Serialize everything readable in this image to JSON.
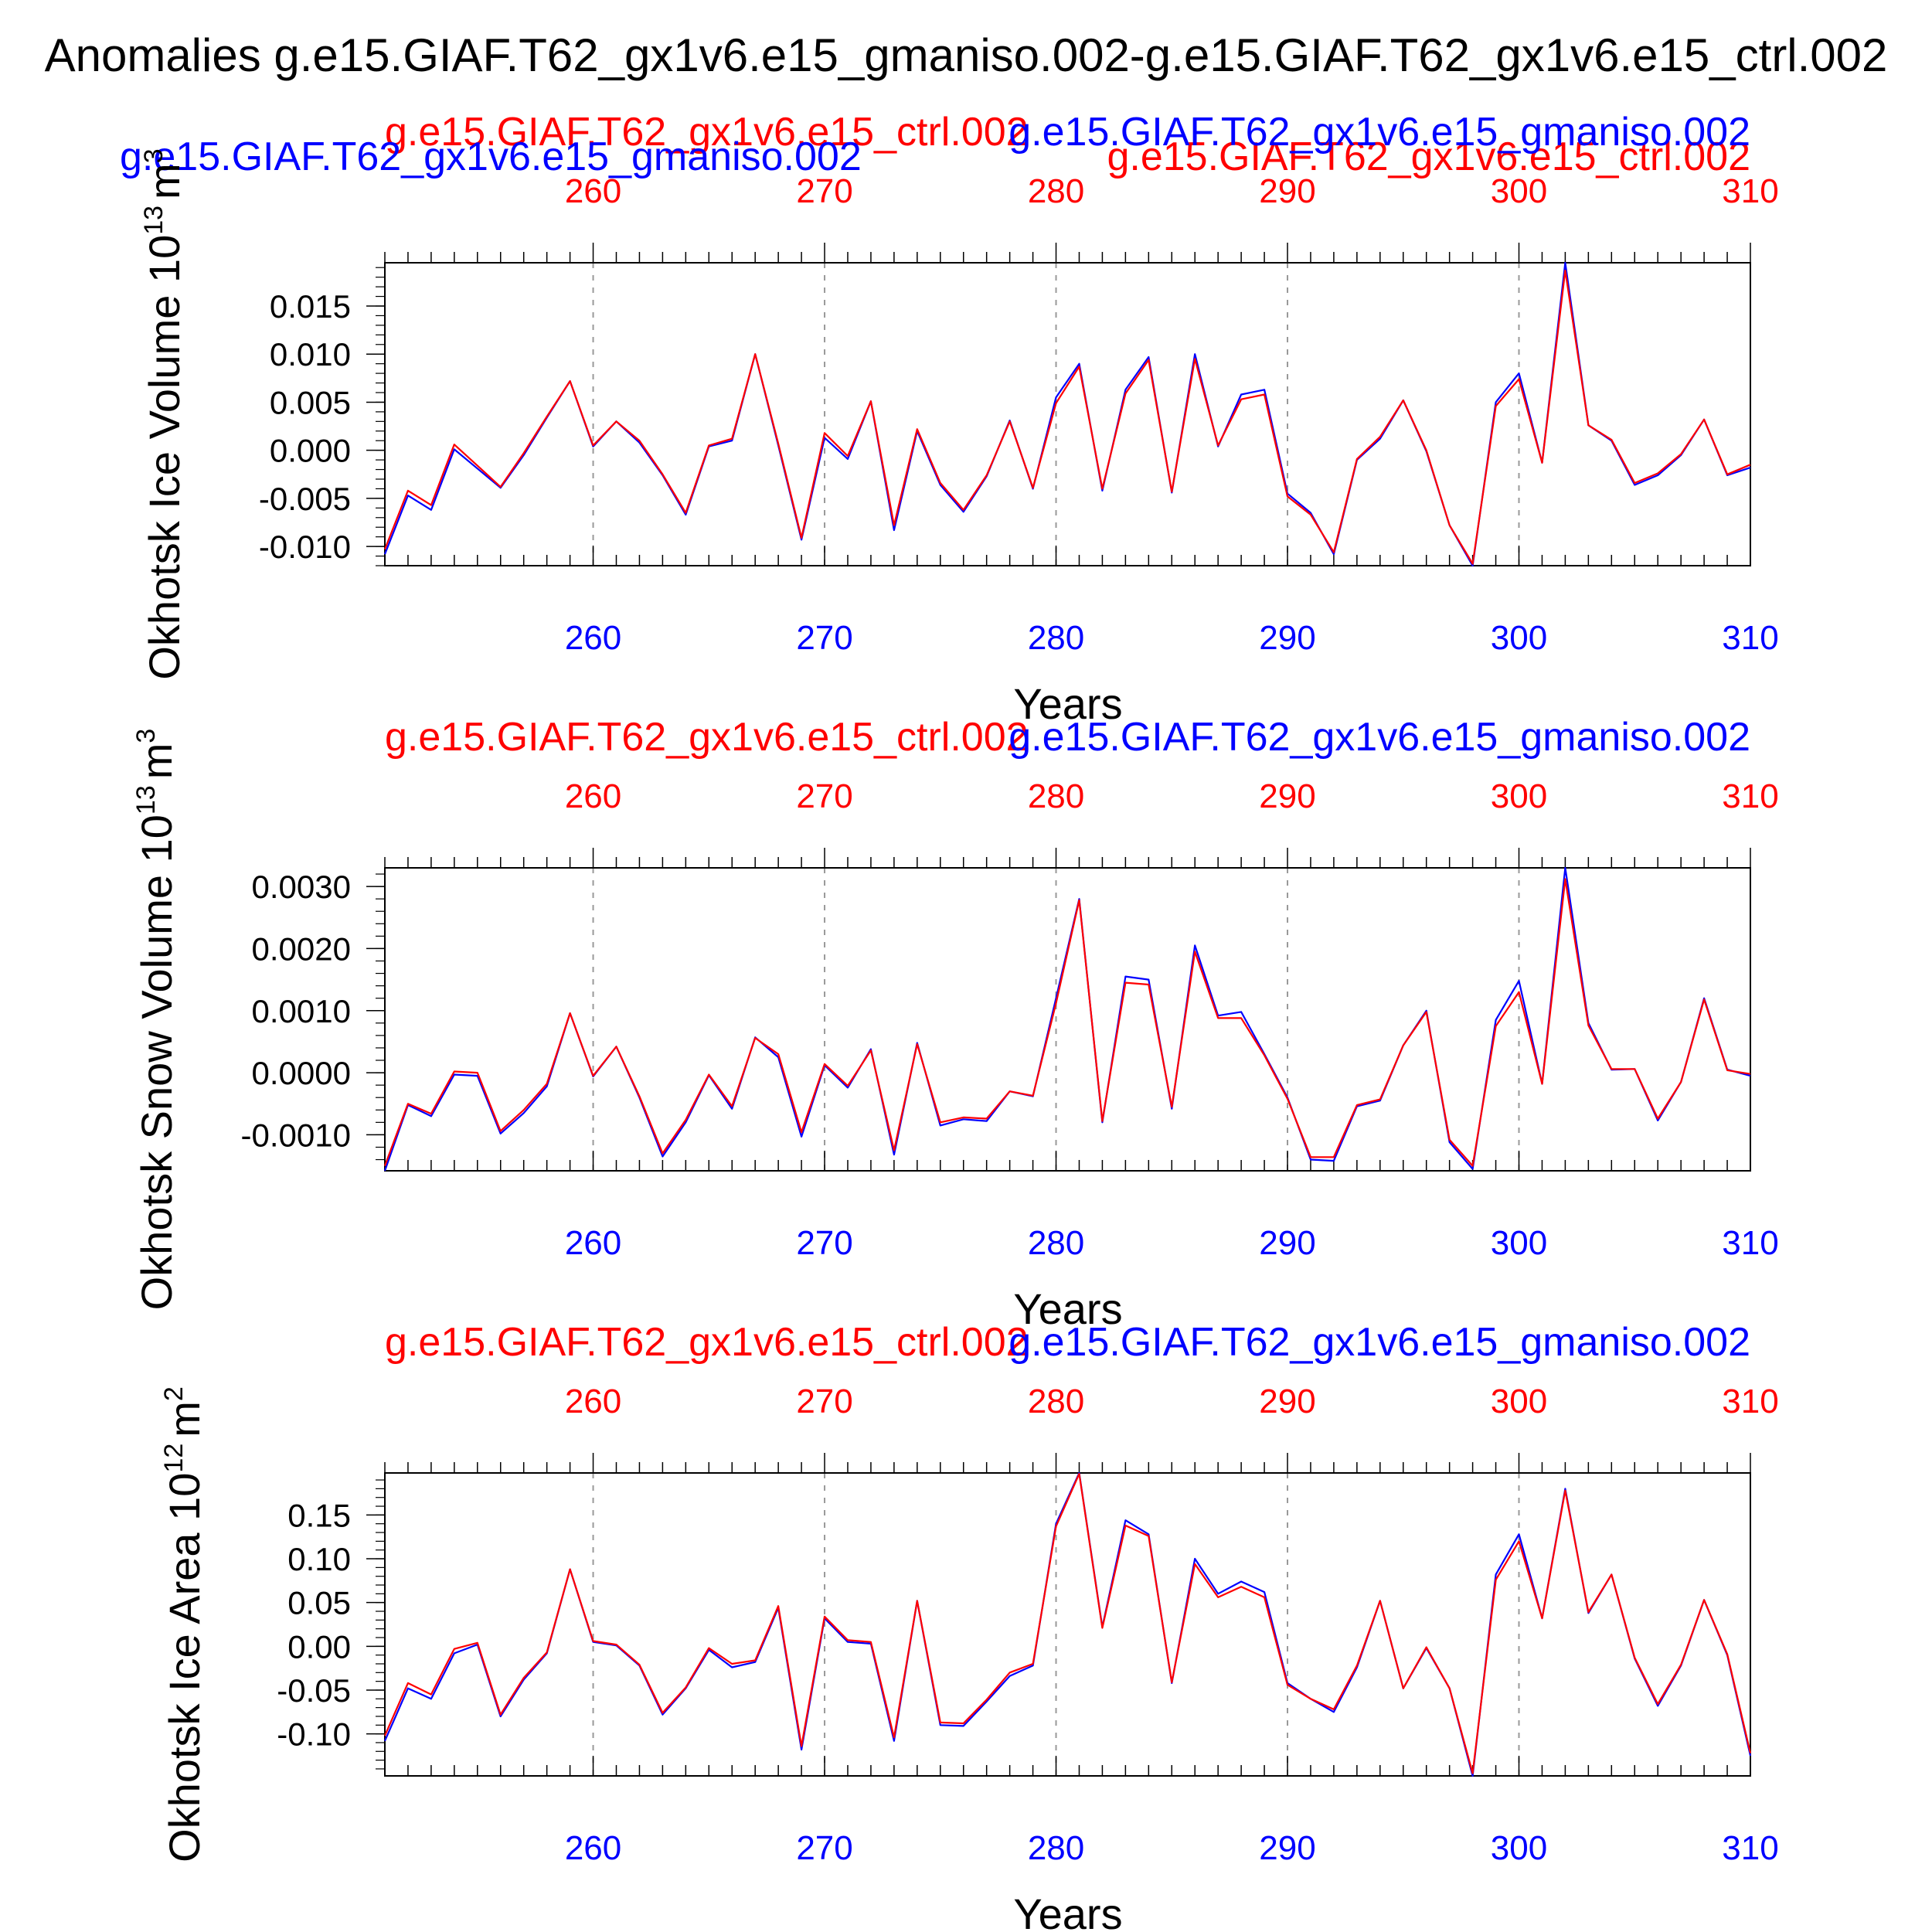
{
  "figure": {
    "main_title": "Anomalies g.e15.GIAF.T62_gx1v6.e15_gmaniso.002-g.e15.GIAF.T62_gx1v6.e15_ctrl.002",
    "colors": {
      "experiment": "#0000ff",
      "control": "#ff0000",
      "axis": "#000000",
      "grid": "#999999"
    },
    "top_labels": {
      "control": "g.e15.GIAF.T62_gx1v6.e15_ctrl.002",
      "experiment": "g.e15.GIAF.T62_gx1v6.e15_gmaniso.002"
    }
  },
  "chart_data": [
    {
      "type": "line",
      "title": "",
      "ylabel": "Okhotsk Ice Volume 10",
      "ylabel_sup": "13",
      "ylabel_unit": "m",
      "ylabel_unit_sup": "3",
      "xlabel": "Years",
      "xlim": [
        251,
        310
      ],
      "ylim": [
        -0.012,
        0.0195
      ],
      "xticks": [
        260,
        270,
        280,
        290,
        300,
        310
      ],
      "yticks": [
        -0.01,
        -0.005,
        0.0,
        0.005,
        0.01,
        0.015
      ],
      "ytick_labels": [
        "-0.010",
        "-0.005",
        "0.000",
        "0.005",
        "0.010",
        "0.015"
      ],
      "grid_x": true,
      "x": [
        251,
        252,
        253,
        254,
        255,
        256,
        257,
        258,
        259,
        260,
        261,
        262,
        263,
        264,
        265,
        266,
        267,
        268,
        269,
        270,
        271,
        272,
        273,
        274,
        275,
        276,
        277,
        278,
        279,
        280,
        281,
        282,
        283,
        284,
        285,
        286,
        287,
        288,
        289,
        290,
        291,
        292,
        293,
        294,
        295,
        296,
        297,
        298,
        299,
        300,
        301,
        302,
        303,
        304,
        305,
        306,
        307,
        308,
        309,
        310
      ],
      "series": [
        {
          "name": "g.e15.GIAF.T62_gx1v6.e15_gmaniso.002",
          "color": "#0000ff",
          "values": [
            -0.0108,
            -0.0047,
            -0.0062,
            0.0001,
            -0.0019,
            -0.0039,
            -0.0005,
            0.0034,
            0.0072,
            0.0004,
            0.003,
            0.0008,
            -0.0026,
            -0.0067,
            0.0004,
            0.001,
            0.01,
            0.0005,
            -0.0093,
            0.0013,
            -0.0009,
            0.0051,
            -0.0083,
            0.002,
            -0.0036,
            -0.0064,
            -0.0027,
            0.0031,
            -0.004,
            0.0055,
            0.009,
            -0.0042,
            0.0063,
            0.0097,
            -0.0044,
            0.01,
            0.0004,
            0.0058,
            0.0063,
            -0.0045,
            -0.0065,
            -0.0108,
            -0.001,
            0.0012,
            0.0052,
            -0.0001,
            -0.0078,
            -0.012,
            0.005,
            0.008,
            -0.0013,
            0.0195,
            0.0026,
            0.001,
            -0.0036,
            -0.0026,
            -0.0005,
            0.0032,
            -0.0026,
            -0.0018
          ]
        },
        {
          "name": "g.e15.GIAF.T62_gx1v6.e15_ctrl.002",
          "color": "#ff0000",
          "values": [
            -0.0103,
            -0.0042,
            -0.0057,
            0.0006,
            -0.0016,
            -0.0038,
            -0.0003,
            0.0035,
            0.0072,
            0.0005,
            0.003,
            0.001,
            -0.0025,
            -0.0065,
            0.0005,
            0.0012,
            0.01,
            0.0007,
            -0.0091,
            0.0018,
            -0.0006,
            0.0051,
            -0.0078,
            0.0022,
            -0.0034,
            -0.0062,
            -0.0026,
            0.003,
            -0.0039,
            0.0049,
            0.0087,
            -0.004,
            0.0059,
            0.0094,
            -0.0043,
            0.0095,
            0.0005,
            0.0053,
            0.0058,
            -0.0048,
            -0.0067,
            -0.0106,
            -0.0009,
            0.0014,
            0.0052,
            0.0,
            -0.0078,
            -0.0118,
            0.0046,
            0.0074,
            -0.0013,
            0.0187,
            0.0026,
            0.0011,
            -0.0034,
            -0.0024,
            -0.0004,
            0.0032,
            -0.0025,
            -0.0015
          ]
        }
      ]
    },
    {
      "type": "line",
      "title": "",
      "ylabel": "Okhotsk Snow Volume 10",
      "ylabel_sup": "13",
      "ylabel_unit": "m",
      "ylabel_unit_sup": "3",
      "xlabel": "Years",
      "xlim": [
        251,
        310
      ],
      "ylim": [
        -0.00158,
        0.0033
      ],
      "xticks": [
        260,
        270,
        280,
        290,
        300,
        310
      ],
      "yticks": [
        -0.001,
        0.0,
        0.001,
        0.002,
        0.003
      ],
      "ytick_labels": [
        "-0.0010",
        "0.0000",
        "0.0010",
        "0.0020",
        "0.0030"
      ],
      "grid_x": true,
      "x": [
        251,
        252,
        253,
        254,
        255,
        256,
        257,
        258,
        259,
        260,
        261,
        262,
        263,
        264,
        265,
        266,
        267,
        268,
        269,
        270,
        271,
        272,
        273,
        274,
        275,
        276,
        277,
        278,
        279,
        280,
        281,
        282,
        283,
        284,
        285,
        286,
        287,
        288,
        289,
        290,
        291,
        292,
        293,
        294,
        295,
        296,
        297,
        298,
        299,
        300,
        301,
        302,
        303,
        304,
        305,
        306,
        307,
        308,
        309,
        310
      ],
      "series": [
        {
          "name": "g.e15.GIAF.T62_gx1v6.e15_gmaniso.002",
          "color": "#0000ff",
          "values": [
            -0.00158,
            -0.00052,
            -0.0007,
            -3e-05,
            -5e-05,
            -0.00098,
            -0.00065,
            -0.00022,
            0.00096,
            -6e-05,
            0.00042,
            -0.0004,
            -0.00135,
            -0.0008,
            -4e-05,
            -0.00058,
            0.00057,
            0.00025,
            -0.00103,
            0.00012,
            -0.00024,
            0.00038,
            -0.00132,
            0.00048,
            -0.00085,
            -0.00075,
            -0.00078,
            -0.0003,
            -0.00038,
            0.0012,
            0.0028,
            -0.0008,
            0.00155,
            0.0015,
            -0.00058,
            0.00205,
            0.00092,
            0.00098,
            0.0003,
            -0.0004,
            -0.0014,
            -0.00142,
            -0.00054,
            -0.00045,
            0.00044,
            0.001,
            -0.00112,
            -0.00155,
            0.00085,
            0.00148,
            -0.00018,
            0.0033,
            0.0008,
            5e-05,
            6e-05,
            -0.00077,
            -0.00015,
            0.0012,
            5e-05,
            -5e-05
          ]
        },
        {
          "name": "g.e15.GIAF.T62_gx1v6.e15_ctrl.002",
          "color": "#ff0000",
          "values": [
            -0.0015,
            -0.0005,
            -0.00066,
            2e-05,
            0.0,
            -0.00094,
            -0.0006,
            -0.00018,
            0.00096,
            -5e-05,
            0.00042,
            -0.00038,
            -0.0013,
            -0.00076,
            -3e-05,
            -0.00054,
            0.00056,
            0.0003,
            -0.00096,
            0.00014,
            -0.00021,
            0.00036,
            -0.00125,
            0.00046,
            -0.0008,
            -0.00072,
            -0.00074,
            -0.0003,
            -0.00037,
            0.00112,
            0.00278,
            -0.00078,
            0.00145,
            0.00142,
            -0.00055,
            0.00195,
            0.00088,
            0.00088,
            0.00028,
            -0.00042,
            -0.00136,
            -0.00136,
            -0.00052,
            -0.00043,
            0.00044,
            0.00098,
            -0.00108,
            -0.0015,
            0.00075,
            0.0013,
            -0.00018,
            0.00312,
            0.00076,
            6e-05,
            6e-05,
            -0.00074,
            -0.00015,
            0.00118,
            4e-05,
            -2e-05
          ]
        }
      ]
    },
    {
      "type": "line",
      "title": "",
      "ylabel": "Okhotsk Ice Area 10",
      "ylabel_sup": "12",
      "ylabel_unit": "m",
      "ylabel_unit_sup": "2",
      "xlabel": "Years",
      "xlim": [
        251,
        310
      ],
      "ylim": [
        -0.148,
        0.198
      ],
      "xticks": [
        260,
        270,
        280,
        290,
        300,
        310
      ],
      "yticks": [
        -0.1,
        -0.05,
        0.0,
        0.05,
        0.1,
        0.15
      ],
      "ytick_labels": [
        "-0.10",
        "-0.05",
        "0.00",
        "0.05",
        "0.10",
        "0.15"
      ],
      "grid_x": true,
      "x": [
        251,
        252,
        253,
        254,
        255,
        256,
        257,
        258,
        259,
        260,
        261,
        262,
        263,
        264,
        265,
        266,
        267,
        268,
        269,
        270,
        271,
        272,
        273,
        274,
        275,
        276,
        277,
        278,
        279,
        280,
        281,
        282,
        283,
        284,
        285,
        286,
        287,
        288,
        289,
        290,
        291,
        292,
        293,
        294,
        295,
        296,
        297,
        298,
        299,
        300,
        301,
        302,
        303,
        304,
        305,
        306,
        307,
        308,
        309,
        310
      ],
      "series": [
        {
          "name": "g.e15.GIAF.T62_gx1v6.e15_gmaniso.002",
          "color": "#0000ff",
          "values": [
            -0.108,
            -0.048,
            -0.06,
            -0.008,
            0.002,
            -0.08,
            -0.038,
            -0.008,
            0.088,
            0.005,
            0.001,
            -0.022,
            -0.078,
            -0.048,
            -0.004,
            -0.024,
            -0.018,
            0.044,
            -0.118,
            0.032,
            0.005,
            0.003,
            -0.108,
            0.052,
            -0.09,
            -0.091,
            -0.063,
            -0.034,
            -0.022,
            0.14,
            0.198,
            0.022,
            0.144,
            0.128,
            -0.042,
            0.1,
            0.06,
            0.074,
            0.062,
            -0.042,
            -0.06,
            -0.075,
            -0.024,
            0.052,
            -0.048,
            -0.002,
            -0.048,
            -0.148,
            0.082,
            0.128,
            0.032,
            0.18,
            0.038,
            0.082,
            -0.014,
            -0.068,
            -0.022,
            0.053,
            -0.01,
            -0.125
          ]
        },
        {
          "name": "g.e15.GIAF.T62_gx1v6.e15_ctrl.002",
          "color": "#ff0000",
          "values": [
            -0.102,
            -0.042,
            -0.055,
            -0.003,
            0.004,
            -0.078,
            -0.036,
            -0.007,
            0.088,
            0.006,
            0.002,
            -0.021,
            -0.076,
            -0.047,
            -0.002,
            -0.02,
            -0.016,
            0.046,
            -0.114,
            0.034,
            0.007,
            0.005,
            -0.104,
            0.052,
            -0.087,
            -0.088,
            -0.061,
            -0.03,
            -0.02,
            0.137,
            0.197,
            0.021,
            0.138,
            0.126,
            -0.041,
            0.094,
            0.056,
            0.068,
            0.056,
            -0.044,
            -0.06,
            -0.072,
            -0.022,
            0.052,
            -0.048,
            -0.001,
            -0.048,
            -0.145,
            0.076,
            0.12,
            0.032,
            0.178,
            0.039,
            0.082,
            -0.013,
            -0.066,
            -0.021,
            0.053,
            -0.009,
            -0.122
          ]
        }
      ]
    }
  ]
}
